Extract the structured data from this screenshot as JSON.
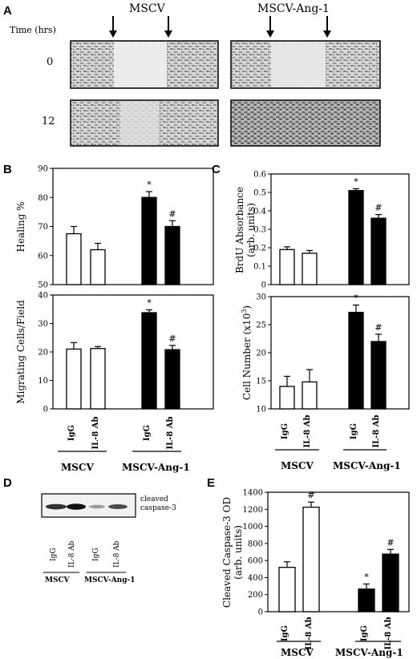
{
  "panels": {
    "A": {
      "label": "A",
      "time_header": "Time (hrs)",
      "conditions": [
        "MSCV",
        "MSCV-Ang-1"
      ],
      "times": [
        "0",
        "12"
      ]
    },
    "B": {
      "label": "B"
    },
    "C": {
      "label": "C"
    },
    "D": {
      "label": "D",
      "band_label_1": "cleaved",
      "band_label_2": "caspase-3",
      "lanes": [
        "IgG",
        "IL-8 Ab",
        "IgG",
        "IL-8 Ab"
      ],
      "groups": [
        "MSCV",
        "MSCV-Ang-1"
      ]
    },
    "E": {
      "label": "E"
    }
  },
  "colors": {
    "open": "#ffffff",
    "filled": "#000000",
    "ink": "#000000"
  },
  "chart_data": [
    {
      "id": "B-top",
      "type": "bar",
      "categories": [
        "IgG",
        "IL-8 Ab",
        "IgG",
        "IL-8 Ab"
      ],
      "groups": [
        "MSCV",
        "MSCV",
        "MSCV-Ang-1",
        "MSCV-Ang-1"
      ],
      "values": [
        67.5,
        62,
        80,
        70
      ],
      "errors": [
        2.5,
        2.2,
        2.0,
        2.0
      ],
      "markers": [
        "",
        "",
        "*",
        "#"
      ],
      "fills": [
        "open",
        "open",
        "filled",
        "filled"
      ],
      "ylabel": "Healing %",
      "ylim": [
        50,
        90
      ],
      "yticks": [
        "50",
        "60",
        "70",
        "80",
        "90"
      ]
    },
    {
      "id": "B-bottom",
      "type": "bar",
      "categories": [
        "IgG",
        "IL-8 Ab",
        "IgG",
        "IL-8 Ab"
      ],
      "groups": [
        "MSCV",
        "MSCV",
        "MSCV-Ang-1",
        "MSCV-Ang-1"
      ],
      "values": [
        21,
        21.2,
        33.8,
        20.8
      ],
      "errors": [
        2.3,
        0.7,
        1.0,
        1.5
      ],
      "markers": [
        "",
        "",
        "*",
        "#"
      ],
      "fills": [
        "open",
        "open",
        "filled",
        "filled"
      ],
      "ylabel": "Migrating Cells/Field",
      "ylim": [
        0,
        40
      ],
      "yticks": [
        "0",
        "10",
        "20",
        "30",
        "40"
      ]
    },
    {
      "id": "C-top",
      "type": "bar",
      "categories": [
        "IgG",
        "IL-8 Ab",
        "IgG",
        "IL-8 Ab"
      ],
      "groups": [
        "MSCV",
        "MSCV",
        "MSCV-Ang-1",
        "MSCV-Ang-1"
      ],
      "values": [
        0.19,
        0.17,
        0.51,
        0.36
      ],
      "errors": [
        0.015,
        0.015,
        0.01,
        0.02
      ],
      "markers": [
        "",
        "",
        "*",
        "#"
      ],
      "fills": [
        "open",
        "open",
        "filled",
        "filled"
      ],
      "ylabel": "BrdU Absorbance",
      "ylabel2": "(arb. units)",
      "ylim": [
        0,
        0.6
      ],
      "yticks": [
        "0",
        "0.1",
        "0.2",
        "0.3",
        "0.4",
        "0.5",
        "0.6"
      ]
    },
    {
      "id": "C-bottom",
      "type": "bar",
      "categories": [
        "IgG",
        "IL-8 Ab",
        "IgG",
        "IL-8 Ab"
      ],
      "groups": [
        "MSCV",
        "MSCV",
        "MSCV-Ang-1",
        "MSCV-Ang-1"
      ],
      "values": [
        14,
        14.8,
        27.2,
        22
      ],
      "errors": [
        1.8,
        2.2,
        1.3,
        1.3
      ],
      "markers": [
        "",
        "",
        "*",
        "#"
      ],
      "fills": [
        "open",
        "open",
        "filled",
        "filled"
      ],
      "ylabel": "Cell Number (x10",
      "ylabel_sup": "3",
      "ylabel_end": ")",
      "ylim": [
        10,
        30
      ],
      "yticks": [
        "10",
        "15",
        "20",
        "25",
        "30"
      ]
    },
    {
      "id": "E",
      "type": "bar",
      "categories": [
        "IgG",
        "IL-8 Ab",
        "IgG",
        "IL-8 Ab"
      ],
      "groups": [
        "MSCV",
        "MSCV",
        "MSCV-Ang-1",
        "MSCV-Ang-1"
      ],
      "values": [
        520,
        1225,
        265,
        675
      ],
      "errors": [
        65,
        60,
        60,
        55
      ],
      "markers": [
        "",
        "#",
        "*",
        "#"
      ],
      "fills": [
        "open",
        "open",
        "filled",
        "filled"
      ],
      "ylabel": "Cleaved Caspase-3 OD",
      "ylabel2": "(arb. units)",
      "ylim": [
        0,
        1400
      ],
      "yticks": [
        "0",
        "200",
        "400",
        "600",
        "800",
        "1000",
        "1200",
        "1400"
      ]
    }
  ]
}
